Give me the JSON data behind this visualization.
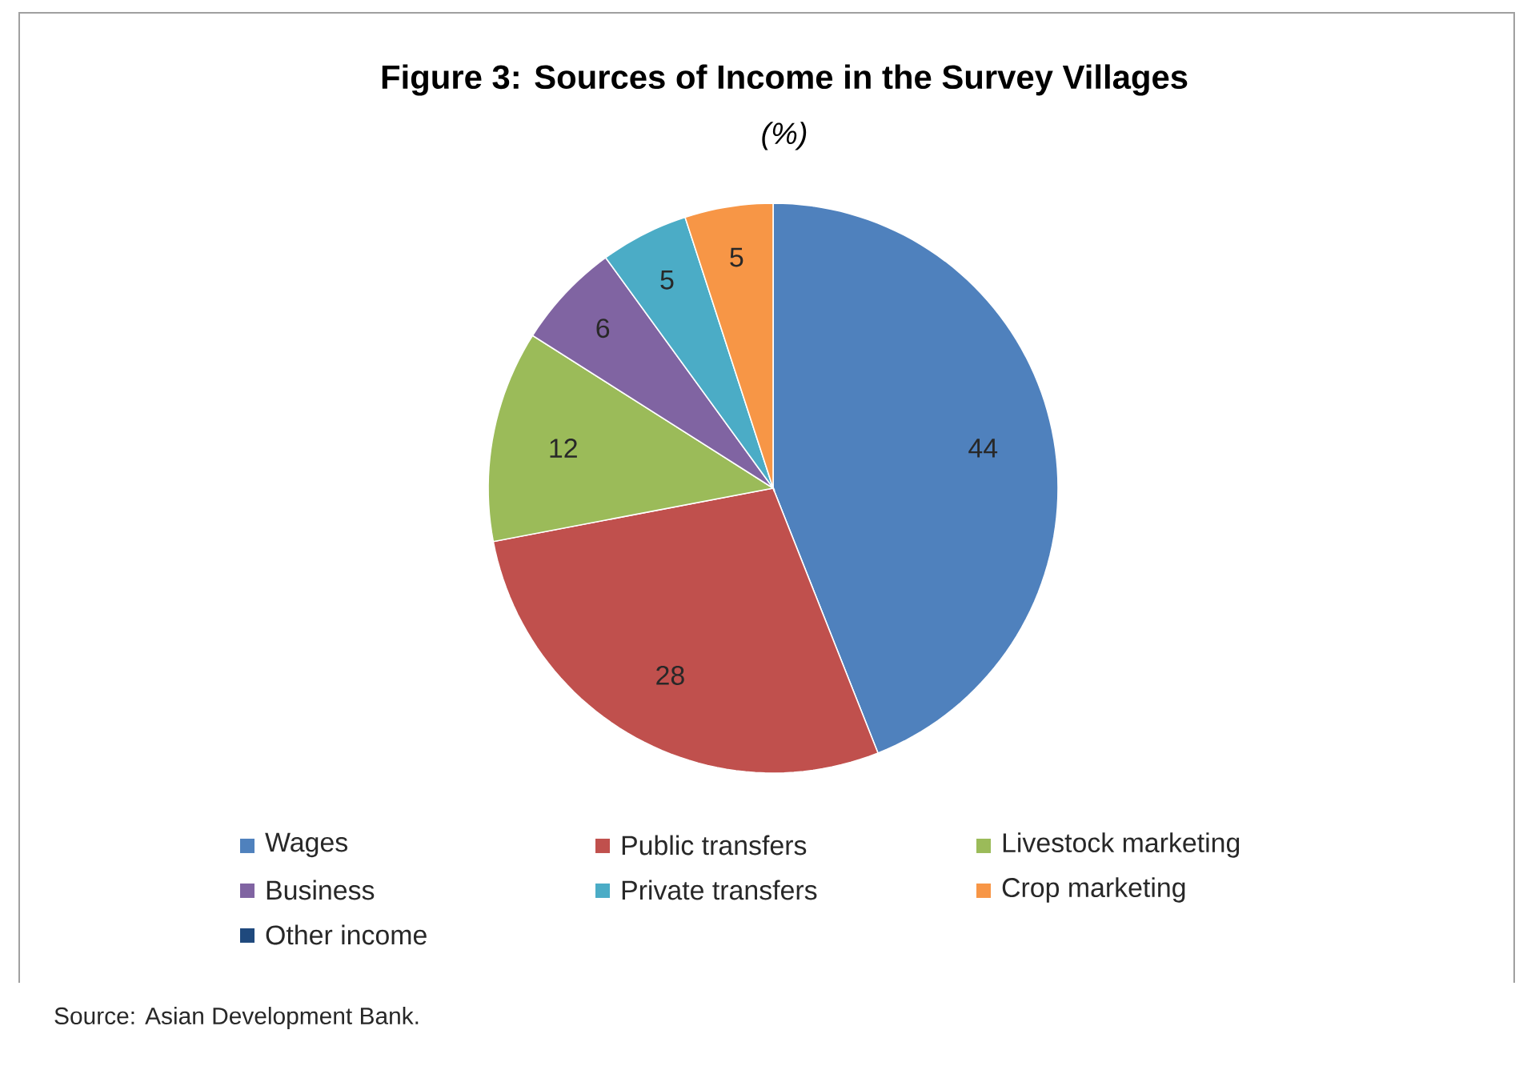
{
  "chart_data": {
    "type": "pie",
    "title": "Figure 3: Sources of Income in the Survey Villages",
    "subtitle": "(%)",
    "categories": [
      "Wages",
      "Public transfers",
      "Livestock marketing",
      "Business",
      "Private transfers",
      "Crop marketing",
      "Other income"
    ],
    "values": [
      44,
      28,
      12,
      6,
      5,
      5,
      0
    ],
    "colors": [
      "#4f81bd",
      "#c0504d",
      "#9bbb59",
      "#8064a2",
      "#4bacc6",
      "#f79646",
      "#1f497d"
    ],
    "value_labels": [
      "44",
      "28",
      "12",
      "6",
      "5",
      "5",
      null
    ],
    "legend": "bottom",
    "annotations": [
      "Source: Asian Development Bank."
    ]
  }
}
